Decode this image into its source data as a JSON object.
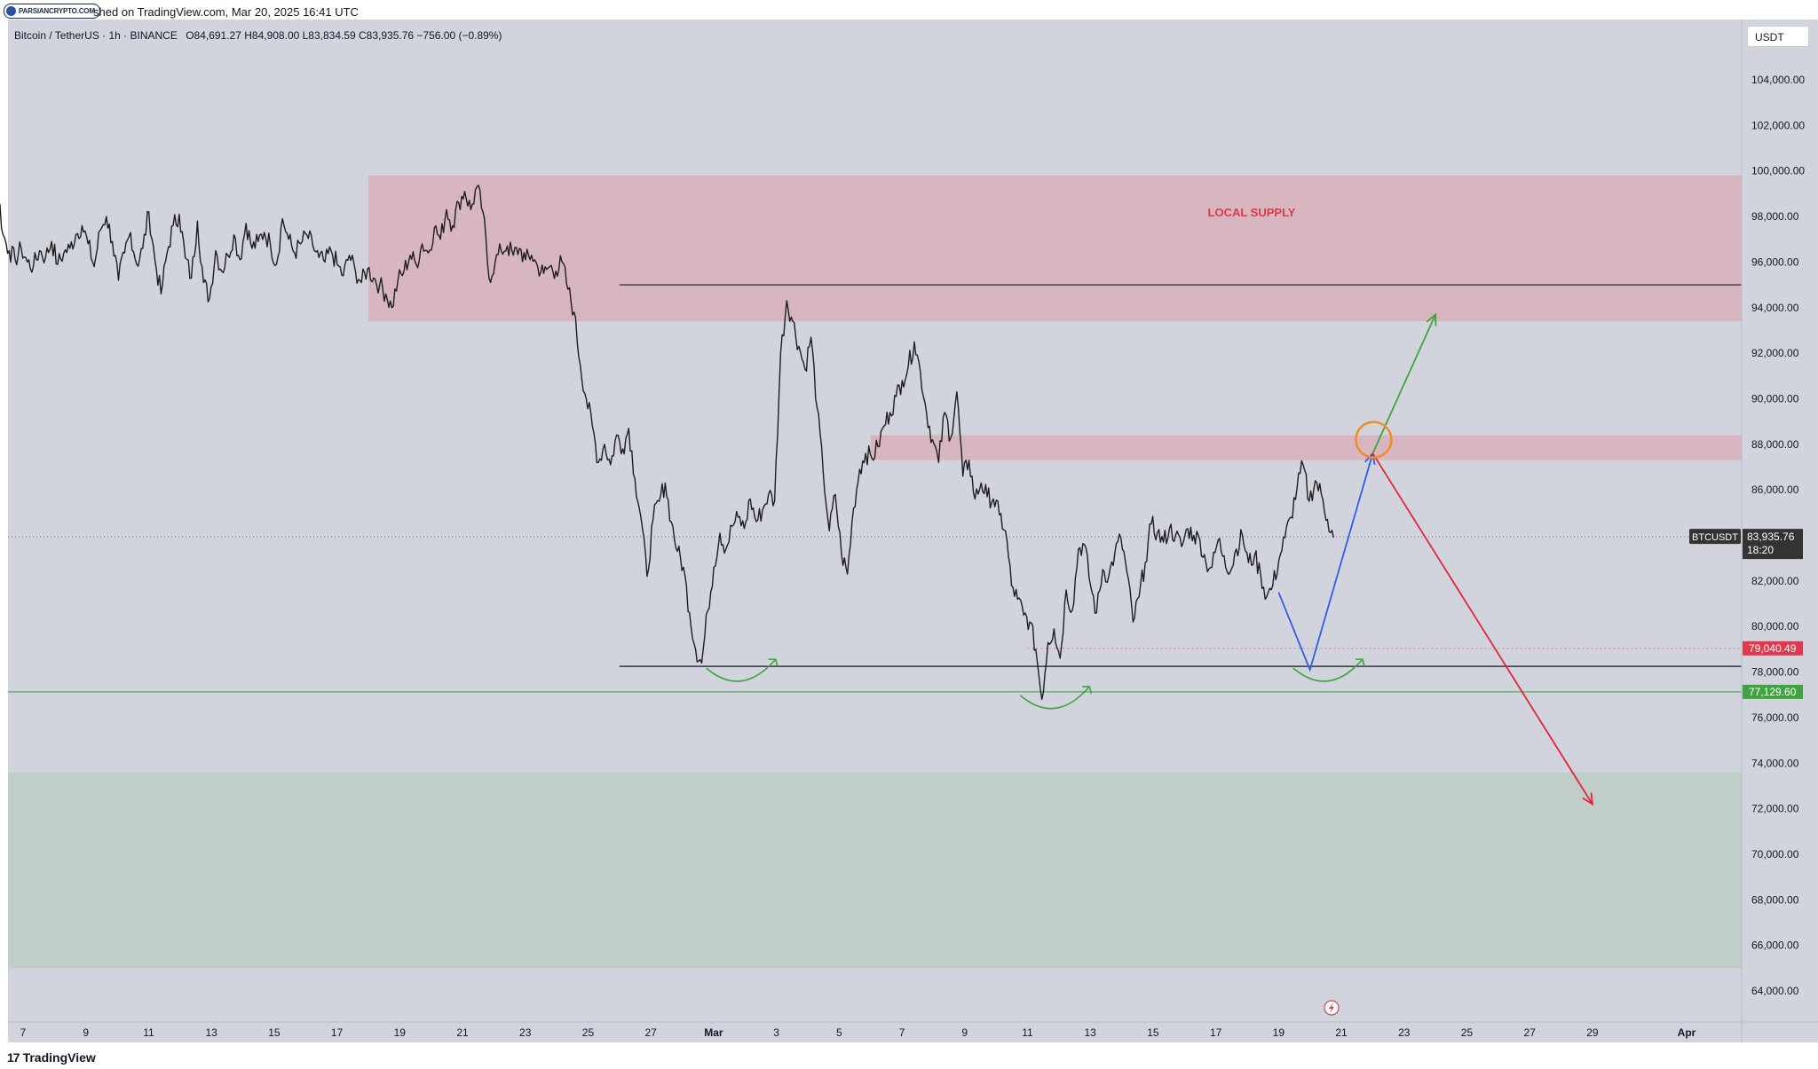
{
  "header": {
    "logo_text": "PARSIANCRYPTO.COM",
    "published": "shed on TradingView.com, Mar 20, 2025 16:41 UTC",
    "symbol": "Bitcoin / TetherUS · 1h · BINANCE",
    "ohlc": "O84,691.27  H84,908.00  L83,834.59  C83,935.76  −756.00 (−0.89%)",
    "currency": "USDT"
  },
  "footer": {
    "brand": "TradingView",
    "brand_mark": "17"
  },
  "colors": {
    "background": "#d1d4dd",
    "supply_zone": "#d8b3bc",
    "demand_zone": "#bfcdc5",
    "candles": "#1e1e1e",
    "support_line": "#5aa85a",
    "blue_path": "#2f5fe0",
    "green_path": "#3fa33f",
    "red_path": "#e0263a",
    "circle": "#f28c28",
    "price_label": "#333333",
    "level_red": "#e0394b",
    "level_green": "#3fa33f"
  },
  "chart_data": {
    "type": "line",
    "title": "Bitcoin / TetherUS · 1h · BINANCE",
    "xlabel": "",
    "ylabel": "",
    "ylim": [
      62000,
      106000
    ],
    "grid": false,
    "y_ticks": [
      "104,000.00",
      "102,000.00",
      "100,000.00",
      "98,000.00",
      "96,000.00",
      "94,000.00",
      "92,000.00",
      "90,000.00",
      "88,000.00",
      "86,000.00",
      "84,000.00",
      "82,000.00",
      "80,000.00",
      "78,000.00",
      "76,000.00",
      "74,000.00",
      "72,000.00",
      "70,000.00",
      "68,000.00",
      "66,000.00",
      "64,000.00"
    ],
    "x_ticks": [
      "7",
      "9",
      "11",
      "13",
      "15",
      "17",
      "19",
      "21",
      "23",
      "25",
      "27",
      "Mar",
      "3",
      "5",
      "7",
      "9",
      "11",
      "13",
      "15",
      "17",
      "19",
      "21",
      "23",
      "25",
      "27",
      "29",
      "Apr"
    ],
    "series": [
      {
        "values": [
          98500,
          96800,
          96200,
          97500,
          96300,
          99500,
          97200,
          96500,
          96100,
          96600,
          96000,
          95800,
          96500,
          96200,
          96900,
          95900,
          96400,
          96600,
          97200,
          97600,
          96800,
          95800,
          97400,
          98000,
          96900,
          95200,
          96400,
          97300,
          95900,
          96600,
          98200,
          96100,
          94600,
          96400,
          97600,
          98100,
          96200,
          95300,
          97800,
          95100,
          94400,
          96500,
          95600,
          96300,
          97200,
          96100,
          97700,
          96600,
          96900,
          97300,
          96800,
          95900,
          97900,
          97000,
          96400,
          96800,
          97200,
          96700,
          96200,
          96000,
          96500,
          95900,
          95400,
          96300,
          95600,
          95100,
          95700,
          95300,
          95000,
          94600,
          94000,
          95200,
          95600,
          96300,
          95900,
          96800,
          96400,
          97500,
          97000,
          98300,
          97600,
          98600,
          99100,
          98300,
          99300,
          98200,
          95300,
          96000,
          96500,
          96700,
          96300,
          96600,
          96100,
          96300,
          95800,
          95500,
          95800,
          95600,
          96000,
          94800,
          93800,
          91500,
          90000,
          88800,
          87200,
          88000,
          87100,
          88400,
          87800,
          88700,
          86500,
          84800,
          82200,
          84700,
          85500,
          86300,
          84600,
          83300,
          82600,
          80600,
          79000,
          78400,
          80700,
          82600,
          84100,
          83400,
          84400,
          84800,
          84300,
          85600,
          84600,
          85100,
          85800,
          85500,
          92000,
          94300,
          93400,
          92300,
          91300,
          92700,
          89600,
          86800,
          84200,
          85800,
          83200,
          82300,
          85200,
          86900,
          87600,
          87400,
          87900,
          88800,
          89400,
          90100,
          90800,
          91400,
          92500,
          91200,
          89400,
          88200,
          87200,
          89400,
          88300,
          90300,
          86600,
          87300,
          85600,
          86300,
          85700,
          85600,
          84900,
          84200,
          81800,
          81200,
          80500,
          80200,
          79000,
          76800,
          79300,
          79900,
          78600,
          81600,
          80700,
          83400,
          83600,
          81800,
          80600,
          82500,
          82200,
          83200,
          83900,
          82400,
          80200,
          81300,
          82800,
          84500,
          84100,
          83700,
          84300,
          84000,
          83500,
          84300,
          84000,
          83800,
          82800,
          82600,
          83800,
          83100,
          82400,
          83400,
          84000,
          82800,
          83100,
          82300,
          81300,
          81800,
          82900,
          83900,
          84800,
          86100,
          87100,
          85500,
          86400,
          85800,
          84700,
          83900
        ]
      }
    ],
    "zones": [
      {
        "label": "LOCAL SUPPLY",
        "from_date": "Feb 18",
        "to_date": "Apr",
        "low": 93400,
        "high": 99800
      },
      {
        "label": "",
        "from_date": "Mar 6",
        "to_date": "Apr",
        "low": 87300,
        "high": 88400
      },
      {
        "label": "",
        "from_date": "Feb 5",
        "to_date": "Apr",
        "low": 65000,
        "high": 73600
      }
    ],
    "horizontal_levels": [
      {
        "value": 95000,
        "from_date": "Feb 26",
        "style": "solid-black"
      },
      {
        "value": 78250,
        "from_date": "Feb 26",
        "style": "solid-black"
      },
      {
        "value": 77129.6,
        "from_date": "Feb 5",
        "style": "solid-green",
        "label": "77,129.60"
      },
      {
        "value": 79040.49,
        "from_date": "Mar 11",
        "style": "dotted-red",
        "label": "79,040.49"
      },
      {
        "value": 83935.76,
        "from_date": "Feb 5",
        "style": "dotted-gray"
      }
    ],
    "price_label": {
      "symbol": "BTCUSDT",
      "price": "83,935.76",
      "countdown": "18:20"
    },
    "projections": [
      {
        "color": "blue",
        "points": [
          [
            "Mar 19",
            81500
          ],
          [
            "Mar 20",
            78100
          ],
          [
            "Mar 22",
            87600
          ]
        ]
      },
      {
        "color": "green",
        "points": [
          [
            "Mar 22",
            87600
          ],
          [
            "Mar 24",
            93700
          ]
        ]
      },
      {
        "color": "red",
        "points": [
          [
            "Mar 22",
            87600
          ],
          [
            "Mar 29",
            72200
          ]
        ]
      }
    ]
  }
}
